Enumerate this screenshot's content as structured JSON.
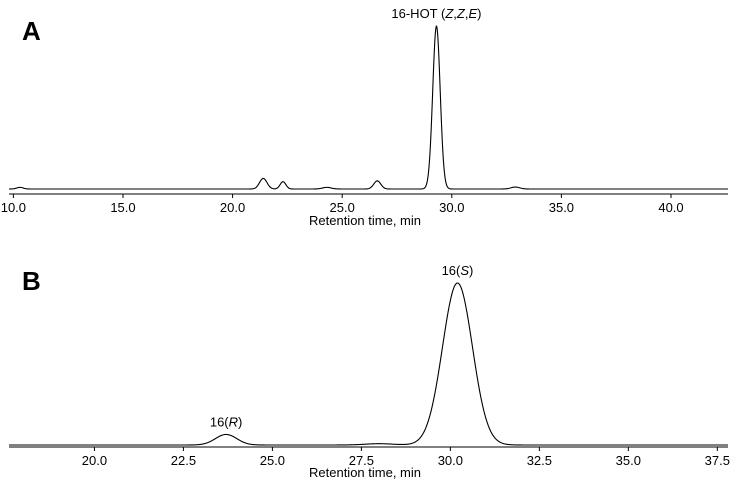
{
  "chart_data": [
    {
      "type": "line",
      "panel_label": "A",
      "xlabel": "Retention time, min",
      "ylabel": "",
      "xlim": [
        9.8,
        42.6
      ],
      "ylim": [
        0,
        1
      ],
      "grid": false,
      "x_ticks": [
        "10.0",
        "15.0",
        "20.0",
        "25.0",
        "30.0",
        "35.0",
        "40.0"
      ],
      "x_tick_values": [
        10,
        15,
        20,
        25,
        30,
        35,
        40
      ],
      "annotations": [
        {
          "text_parts": [
            {
              "t": "16-HOT (",
              "i": false
            },
            {
              "t": "Z",
              "i": true
            },
            {
              "t": ",",
              "i": false
            },
            {
              "t": "Z",
              "i": true
            },
            {
              "t": ",",
              "i": false
            },
            {
              "t": "E",
              "i": true
            },
            {
              "t": ")",
              "i": false
            }
          ],
          "x": 29.3
        }
      ],
      "series": [
        {
          "baseline": 0.01,
          "peaks": [
            {
              "center": 10.3,
              "height": 0.01,
              "width": 0.15
            },
            {
              "center": 21.4,
              "height": 0.065,
              "width": 0.17
            },
            {
              "center": 22.3,
              "height": 0.045,
              "width": 0.13
            },
            {
              "center": 24.3,
              "height": 0.01,
              "width": 0.2
            },
            {
              "center": 26.6,
              "height": 0.05,
              "width": 0.16
            },
            {
              "center": 29.3,
              "height": 1.0,
              "width": 0.17
            },
            {
              "center": 32.9,
              "height": 0.012,
              "width": 0.2
            }
          ]
        }
      ]
    },
    {
      "type": "line",
      "panel_label": "B",
      "xlabel": "Retention time, min",
      "ylabel": "",
      "xlim": [
        17.6,
        37.8
      ],
      "ylim": [
        0,
        1
      ],
      "grid": false,
      "x_ticks": [
        "20.0",
        "22.5",
        "25.0",
        "27.5",
        "30.0",
        "32.5",
        "35.0",
        "37.5"
      ],
      "x_tick_values": [
        20,
        22.5,
        25,
        27.5,
        30,
        32.5,
        35,
        37.5
      ],
      "annotations": [
        {
          "text_parts": [
            {
              "t": "16(",
              "i": false
            },
            {
              "t": "R",
              "i": true
            },
            {
              "t": ")",
              "i": false
            }
          ],
          "x": 23.7
        },
        {
          "text_parts": [
            {
              "t": "16(",
              "i": false
            },
            {
              "t": "S",
              "i": true
            },
            {
              "t": ")",
              "i": false
            }
          ],
          "x": 30.2
        }
      ],
      "series": [
        {
          "baseline": 0.0,
          "peaks": [
            {
              "center": 23.7,
              "height": 0.065,
              "width": 0.3
            },
            {
              "center": 28.0,
              "height": 0.008,
              "width": 0.4
            },
            {
              "center": 30.2,
              "height": 1.0,
              "width": 0.42
            }
          ]
        }
      ]
    }
  ]
}
